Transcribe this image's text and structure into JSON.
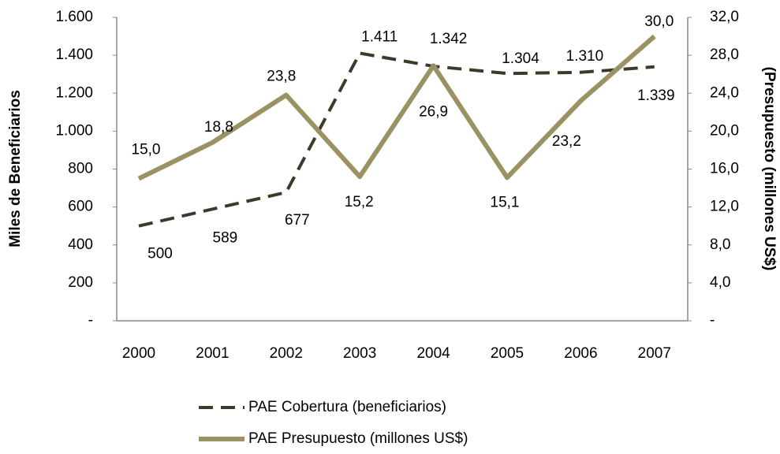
{
  "chart_data": {
    "type": "line",
    "categories": [
      "2000",
      "2001",
      "2002",
      "2003",
      "2004",
      "2005",
      "2006",
      "2007"
    ],
    "y_label": "Miles de Beneficiarios",
    "y2_label": "(Presupuesto (millones  US$)",
    "ylim": [
      0,
      1600
    ],
    "yticks": [
      {
        "value": 0,
        "label": "-"
      },
      200,
      400,
      600,
      800,
      {
        "value": 1000,
        "label": "1.000"
      },
      {
        "value": 1200,
        "label": "1.200"
      },
      {
        "value": 1400,
        "label": "1.400"
      },
      {
        "value": 1600,
        "label": "1.600"
      }
    ],
    "y2lim": [
      0,
      32
    ],
    "y2ticks": [
      {
        "value": 0,
        "label": "-"
      },
      {
        "value": 4,
        "label": "4,0"
      },
      {
        "value": 8,
        "label": "8,0"
      },
      {
        "value": 12,
        "label": "12,0"
      },
      {
        "value": 16,
        "label": "16,0"
      },
      {
        "value": 20,
        "label": "20,0"
      },
      {
        "value": 24,
        "label": "24,0"
      },
      {
        "value": 28,
        "label": "28,0"
      },
      {
        "value": 32,
        "label": "32,0"
      }
    ],
    "legend": "bottom",
    "series": [
      {
        "name": "PAE Cobertura (beneficiarios)",
        "color": "#3d3a29",
        "dashed": true,
        "values": [
          500,
          589,
          677,
          1411,
          1342,
          1304,
          1310,
          1339
        ],
        "value_labels": [
          "500",
          "589",
          "677",
          "1.411",
          "1.342",
          "1.304",
          "1.310",
          "1.339"
        ]
      },
      {
        "name": "PAE Presupuesto (millones US$)",
        "color": "#9b9264",
        "axis": "y2",
        "values": [
          15.0,
          18.8,
          23.8,
          15.2,
          26.9,
          15.1,
          23.2,
          30.0
        ],
        "value_labels": [
          "15,0",
          "18,8",
          "23,8",
          "15,2",
          "26,9",
          "15,1",
          "23,2",
          "30,0"
        ]
      }
    ]
  }
}
